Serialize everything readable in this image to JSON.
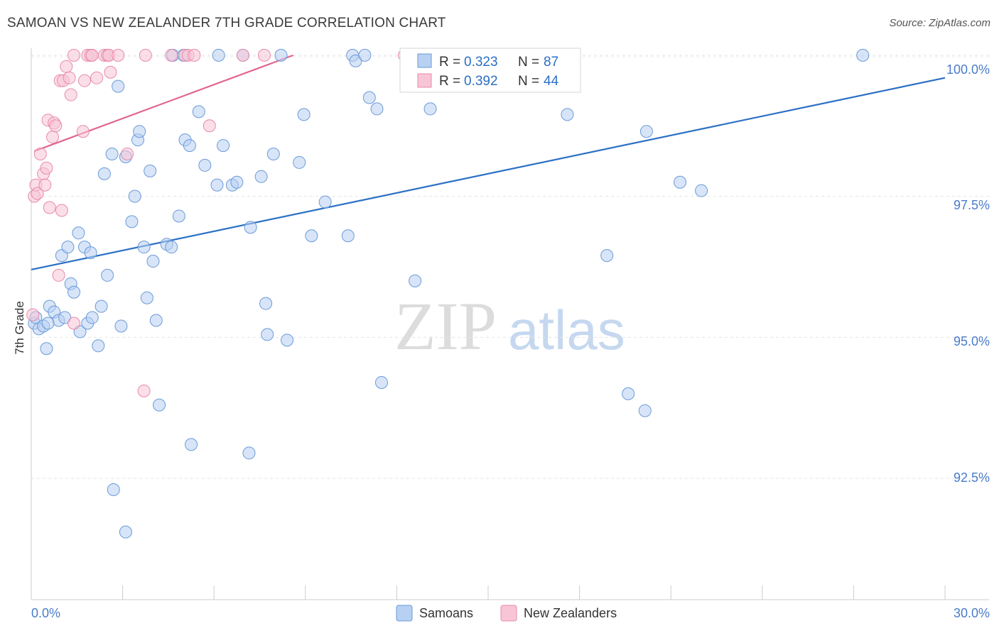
{
  "chart_data": {
    "type": "scatter",
    "title": "SAMOAN VS NEW ZEALANDER 7TH GRADE CORRELATION CHART",
    "source": "Source: ZipAtlas.com",
    "xlabel": "",
    "ylabel": "7th Grade",
    "xlim": [
      0.0,
      30.0
    ],
    "ylim": [
      90.35,
      100.2
    ],
    "x_tick_labels": [
      "0.0%",
      "30.0%"
    ],
    "y_ticks": [
      92.5,
      95.0,
      97.5,
      100.0
    ],
    "y_tick_labels": [
      "92.5%",
      "95.0%",
      "97.5%",
      "100.0%"
    ],
    "grid": true,
    "legend_position": "bottom",
    "watermark": "ZIPatlas",
    "colors": {
      "samoans_fill": "#b8d0f2",
      "samoans_stroke": "#6a9ad8",
      "samoans_line": "#2b6fc4",
      "nz_fill": "#f8c5d6",
      "nz_stroke": "#e88aaa",
      "nz_line": "#e0668f",
      "axis_text": "#4a7cc9"
    },
    "stats": [
      {
        "r_label": "R = ",
        "r_value": "0.323",
        "n_label": "N = ",
        "n_value": "87"
      },
      {
        "r_label": "R = ",
        "r_value": "0.392",
        "n_label": "N = ",
        "n_value": "44"
      }
    ],
    "series": [
      {
        "name": "Samoans",
        "trendline": [
          [
            0.0,
            96.2
          ],
          [
            30.0,
            99.6
          ]
        ],
        "points": [
          [
            0.1,
            95.25
          ],
          [
            0.15,
            95.35
          ],
          [
            0.25,
            95.15
          ],
          [
            0.4,
            95.2
          ],
          [
            0.5,
            94.8
          ],
          [
            0.6,
            95.55
          ],
          [
            0.75,
            95.45
          ],
          [
            0.9,
            95.3
          ],
          [
            1.0,
            96.45
          ],
          [
            1.2,
            96.6
          ],
          [
            1.3,
            95.95
          ],
          [
            1.4,
            95.8
          ],
          [
            1.55,
            96.85
          ],
          [
            1.6,
            95.1
          ],
          [
            1.75,
            96.6
          ],
          [
            1.85,
            95.25
          ],
          [
            1.95,
            96.5
          ],
          [
            2.0,
            95.35
          ],
          [
            2.2,
            94.85
          ],
          [
            2.3,
            95.55
          ],
          [
            2.4,
            97.9
          ],
          [
            2.5,
            96.1
          ],
          [
            2.65,
            98.25
          ],
          [
            2.7,
            92.3
          ],
          [
            2.85,
            99.45
          ],
          [
            2.95,
            95.2
          ],
          [
            3.1,
            98.2
          ],
          [
            3.1,
            91.55
          ],
          [
            3.3,
            97.05
          ],
          [
            3.4,
            97.5
          ],
          [
            3.5,
            98.5
          ],
          [
            3.55,
            98.65
          ],
          [
            3.7,
            96.6
          ],
          [
            3.8,
            95.7
          ],
          [
            3.9,
            97.95
          ],
          [
            4.0,
            96.35
          ],
          [
            4.1,
            95.3
          ],
          [
            4.2,
            93.8
          ],
          [
            4.45,
            96.65
          ],
          [
            4.6,
            96.6
          ],
          [
            4.65,
            100.0
          ],
          [
            4.85,
            97.15
          ],
          [
            5.0,
            100.0
          ],
          [
            5.05,
            98.5
          ],
          [
            5.2,
            98.4
          ],
          [
            5.25,
            93.1
          ],
          [
            5.5,
            99.0
          ],
          [
            5.7,
            98.05
          ],
          [
            6.1,
            97.7
          ],
          [
            6.15,
            100.0
          ],
          [
            6.3,
            98.4
          ],
          [
            6.6,
            97.7
          ],
          [
            6.75,
            97.75
          ],
          [
            6.95,
            100.0
          ],
          [
            7.15,
            92.95
          ],
          [
            7.2,
            96.95
          ],
          [
            7.55,
            97.85
          ],
          [
            7.7,
            95.6
          ],
          [
            7.75,
            95.05
          ],
          [
            7.95,
            98.25
          ],
          [
            8.2,
            100.0
          ],
          [
            8.4,
            94.95
          ],
          [
            8.8,
            98.1
          ],
          [
            8.95,
            98.95
          ],
          [
            9.2,
            96.8
          ],
          [
            9.65,
            97.4
          ],
          [
            10.4,
            96.8
          ],
          [
            10.55,
            100.0
          ],
          [
            10.65,
            99.9
          ],
          [
            10.95,
            100.0
          ],
          [
            11.1,
            99.25
          ],
          [
            11.35,
            99.05
          ],
          [
            11.5,
            94.2
          ],
          [
            12.6,
            96.0
          ],
          [
            13.1,
            99.05
          ],
          [
            14.0,
            100.0
          ],
          [
            14.9,
            100.0
          ],
          [
            17.6,
            98.95
          ],
          [
            18.9,
            96.45
          ],
          [
            19.6,
            94.0
          ],
          [
            20.15,
            93.7
          ],
          [
            20.2,
            98.65
          ],
          [
            21.3,
            97.75
          ],
          [
            22.0,
            97.6
          ],
          [
            27.3,
            100.0
          ],
          [
            0.55,
            95.25
          ],
          [
            1.1,
            95.35
          ]
        ]
      },
      {
        "name": "New Zealanders",
        "trendline": [
          [
            0.1,
            98.3
          ],
          [
            8.6,
            100.0
          ]
        ],
        "points": [
          [
            0.05,
            95.4
          ],
          [
            0.1,
            97.5
          ],
          [
            0.15,
            97.7
          ],
          [
            0.2,
            97.55
          ],
          [
            0.3,
            98.25
          ],
          [
            0.4,
            97.9
          ],
          [
            0.45,
            97.7
          ],
          [
            0.5,
            98.0
          ],
          [
            0.55,
            98.85
          ],
          [
            0.6,
            97.3
          ],
          [
            0.7,
            98.55
          ],
          [
            0.75,
            98.8
          ],
          [
            0.8,
            98.75
          ],
          [
            0.9,
            96.1
          ],
          [
            0.95,
            99.55
          ],
          [
            1.0,
            97.25
          ],
          [
            1.05,
            99.55
          ],
          [
            1.15,
            99.8
          ],
          [
            1.25,
            99.6
          ],
          [
            1.3,
            99.3
          ],
          [
            1.4,
            100.0
          ],
          [
            1.4,
            95.25
          ],
          [
            1.7,
            98.65
          ],
          [
            1.75,
            99.55
          ],
          [
            1.85,
            100.0
          ],
          [
            1.95,
            100.0
          ],
          [
            2.0,
            100.0
          ],
          [
            2.15,
            99.6
          ],
          [
            2.4,
            100.0
          ],
          [
            2.5,
            100.0
          ],
          [
            2.55,
            100.0
          ],
          [
            2.6,
            99.7
          ],
          [
            2.85,
            100.0
          ],
          [
            3.15,
            98.25
          ],
          [
            3.7,
            94.05
          ],
          [
            3.75,
            100.0
          ],
          [
            4.6,
            100.0
          ],
          [
            5.05,
            100.0
          ],
          [
            5.15,
            100.0
          ],
          [
            5.35,
            100.0
          ],
          [
            5.85,
            98.75
          ],
          [
            6.95,
            100.0
          ],
          [
            7.65,
            100.0
          ],
          [
            12.25,
            100.0
          ]
        ]
      }
    ]
  }
}
